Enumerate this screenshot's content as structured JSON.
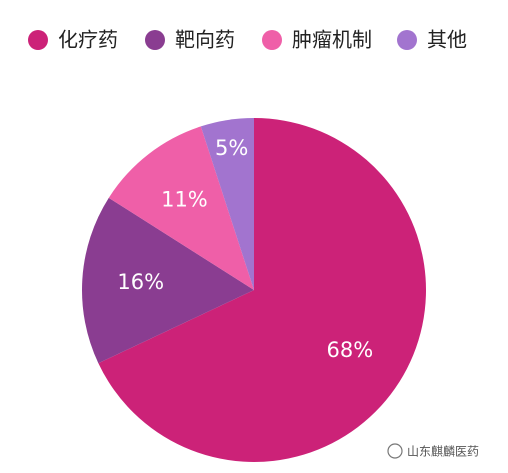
{
  "chart_data": {
    "type": "pie",
    "categories": [
      "化疗药",
      "靶向药",
      "肿瘤机制",
      "其他"
    ],
    "values": [
      68,
      16,
      11,
      5
    ],
    "value_labels": [
      "68%",
      "16%",
      "11%",
      "5%"
    ],
    "colors": [
      "#cc2278",
      "#8a3d91",
      "#ef5fa8",
      "#a274cf"
    ],
    "direction": "clockwise",
    "start": "top",
    "legend": "top"
  },
  "watermark": "山东麒麟医药"
}
